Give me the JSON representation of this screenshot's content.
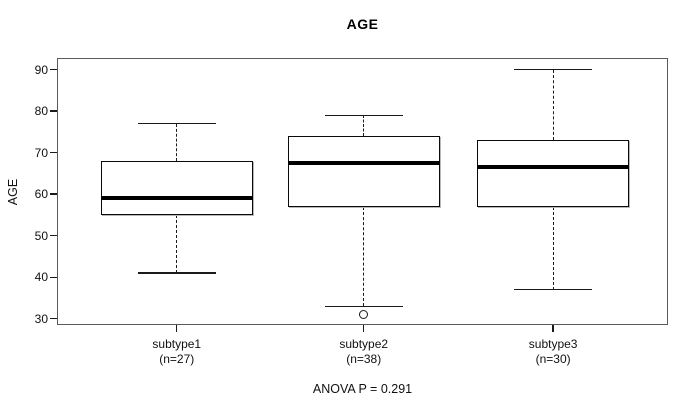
{
  "chart_data": {
    "type": "boxplot",
    "title": "AGE",
    "ylabel": "AGE",
    "footnote": "ANOVA P = 0.291",
    "yticks": [
      30,
      40,
      50,
      60,
      70,
      80,
      90
    ],
    "ylim": [
      28.5,
      92.8
    ],
    "grid": false,
    "groups": [
      {
        "label": "subtype1",
        "sublabel": "(n=27)",
        "n": 27,
        "whisker_low": 41,
        "q1": 55,
        "median": 59,
        "q3": 68,
        "whisker_high": 77,
        "outliers": []
      },
      {
        "label": "subtype2",
        "sublabel": "(n=38)",
        "n": 38,
        "whisker_low": 33,
        "q1": 57,
        "median": 67.5,
        "q3": 74,
        "whisker_high": 79,
        "outliers": [
          31
        ]
      },
      {
        "label": "subtype3",
        "sublabel": "(n=30)",
        "n": 30,
        "whisker_low": 37,
        "q1": 57,
        "median": 66.5,
        "q3": 73,
        "whisker_high": 90,
        "outliers": []
      }
    ],
    "colors": {
      "ink": "#000000",
      "frame": "#5a5a5a",
      "box_fill": "#ffffff",
      "background": "#ffffff"
    }
  }
}
